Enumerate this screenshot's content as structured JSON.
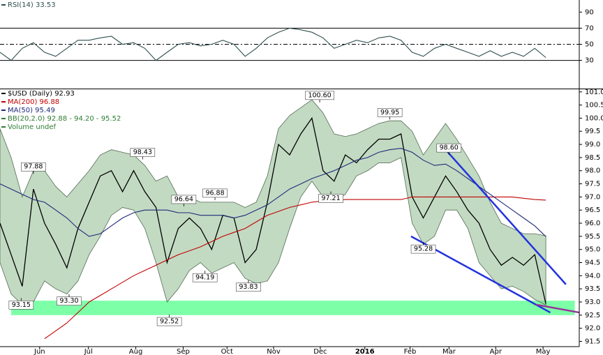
{
  "chart_data": [
    {
      "type": "line",
      "x": [
        0,
        1,
        2,
        3,
        4,
        5,
        6,
        7,
        8,
        9,
        10,
        11,
        12,
        13,
        14,
        15,
        16,
        17,
        18,
        19,
        20,
        21,
        22,
        23,
        24,
        25,
        26,
        27,
        28,
        29,
        30,
        31,
        32,
        33,
        34,
        35,
        36,
        37,
        38,
        39,
        40,
        41,
        42,
        43,
        44,
        45,
        46,
        47,
        48,
        49
      ],
      "series": [
        {
          "name": "RSI(14) 33.53",
          "color": "#2f4f4f",
          "values": [
            40,
            30,
            45,
            52,
            40,
            35,
            45,
            55,
            55,
            58,
            60,
            50,
            52,
            45,
            30,
            40,
            50,
            52,
            48,
            50,
            55,
            50,
            35,
            45,
            58,
            65,
            70,
            68,
            65,
            58,
            45,
            50,
            55,
            52,
            58,
            60,
            55,
            40,
            35,
            45,
            50,
            45,
            40,
            35,
            42,
            35,
            40,
            35,
            45,
            33.53
          ]
        }
      ],
      "xlim": [
        0,
        52
      ],
      "ylim": [
        -5,
        105
      ],
      "yticks": [
        90,
        70,
        50,
        30
      ],
      "levels": [
        70,
        50,
        30
      ],
      "level_styles": [
        "solid",
        "dashed",
        "solid"
      ]
    },
    {
      "type": "line",
      "x": [
        0,
        1,
        2,
        3,
        4,
        5,
        6,
        7,
        8,
        9,
        10,
        11,
        12,
        13,
        14,
        15,
        16,
        17,
        18,
        19,
        20,
        21,
        22,
        23,
        24,
        25,
        26,
        27,
        28,
        29,
        30,
        31,
        32,
        33,
        34,
        35,
        36,
        37,
        38,
        39,
        40,
        41,
        42,
        43,
        44,
        45,
        46,
        47,
        48,
        49
      ],
      "series": [
        {
          "name": "$USD (Daily) 92.93",
          "color": "#000000",
          "values": [
            96.0,
            94.8,
            93.6,
            97.3,
            96.0,
            95.2,
            94.3,
            95.8,
            96.8,
            97.8,
            98.0,
            97.2,
            98.0,
            97.2,
            96.6,
            94.5,
            95.8,
            96.2,
            95.8,
            95.0,
            96.3,
            96.2,
            94.5,
            95.0,
            96.8,
            99.0,
            98.6,
            99.4,
            100.0,
            98.0,
            97.6,
            98.6,
            98.3,
            98.8,
            99.2,
            99.2,
            99.4,
            97.0,
            96.2,
            97.0,
            97.8,
            97.2,
            96.5,
            96.0,
            95.0,
            94.4,
            94.7,
            94.4,
            94.8,
            92.93
          ]
        },
        {
          "name": "MA(200) 96.88",
          "color": "#c00000",
          "values": [
            null,
            null,
            null,
            null,
            91.6,
            91.9,
            92.2,
            92.6,
            93.0,
            93.25,
            93.5,
            93.75,
            94.0,
            94.2,
            94.4,
            94.6,
            94.8,
            94.95,
            95.1,
            95.3,
            95.5,
            95.65,
            95.8,
            96.05,
            96.3,
            96.45,
            96.6,
            96.7,
            96.8,
            96.85,
            96.85,
            96.9,
            96.9,
            96.9,
            96.9,
            96.9,
            96.9,
            97.0,
            97.0,
            97.0,
            97.0,
            97.0,
            97.0,
            97.0,
            97.0,
            97.0,
            97.0,
            96.95,
            96.9,
            96.88
          ]
        },
        {
          "name": "MA(50) 95.49",
          "color": "#1f2a7a",
          "values": [
            97.5,
            97.3,
            97.1,
            96.9,
            96.8,
            96.5,
            96.2,
            95.8,
            95.5,
            95.6,
            95.9,
            96.2,
            96.4,
            96.5,
            96.5,
            96.5,
            96.4,
            96.4,
            96.3,
            96.3,
            96.3,
            96.2,
            96.3,
            96.5,
            96.7,
            97.0,
            97.3,
            97.5,
            97.7,
            97.85,
            98.0,
            98.2,
            98.4,
            98.5,
            98.7,
            98.8,
            98.85,
            98.7,
            98.4,
            98.2,
            98.25,
            98.0,
            97.7,
            97.4,
            97.1,
            96.8,
            96.5,
            96.2,
            95.9,
            95.49
          ]
        }
      ],
      "band": {
        "name": "BB(20,2.0) 92.88 - 94.20 - 95.52",
        "color": "#2e7d32",
        "upper": [
          99.6,
          98.5,
          97.0,
          98.0,
          98.0,
          97.4,
          97.0,
          97.5,
          98.0,
          98.6,
          98.8,
          98.7,
          98.6,
          98.2,
          97.6,
          97.8,
          97.0,
          97.0,
          96.8,
          96.8,
          96.8,
          96.8,
          96.6,
          96.8,
          97.8,
          99.6,
          100.1,
          100.4,
          100.7,
          100.2,
          99.4,
          99.3,
          99.4,
          99.6,
          99.8,
          99.9,
          99.9,
          99.5,
          98.6,
          99.2,
          99.8,
          99.2,
          98.5,
          97.8,
          96.8,
          96.0,
          95.8,
          95.6,
          95.6,
          95.52
        ],
        "lower": [
          94.5,
          93.3,
          92.9,
          93.0,
          93.8,
          93.5,
          93.3,
          93.8,
          94.8,
          95.5,
          96.3,
          96.6,
          96.5,
          95.8,
          94.5,
          93.0,
          93.5,
          94.2,
          94.5,
          94.1,
          94.3,
          94.5,
          93.9,
          93.7,
          93.8,
          94.5,
          95.8,
          97.0,
          97.6,
          97.0,
          96.8,
          97.1,
          97.8,
          98.0,
          98.3,
          98.3,
          98.5,
          96.0,
          95.2,
          95.5,
          96.5,
          96.5,
          95.8,
          94.5,
          94.0,
          93.5,
          93.6,
          93.4,
          93.1,
          92.88
        ]
      },
      "volume_label": "Volume undef",
      "xlim": [
        0,
        52
      ],
      "ylim": [
        91.3,
        101.1
      ],
      "xticks": [
        {
          "value": 3.56,
          "label": "Jun"
        },
        {
          "value": 7.94,
          "label": "Jul"
        },
        {
          "value": 12.19,
          "label": "Aug"
        },
        {
          "value": 16.44,
          "label": "Sep"
        },
        {
          "value": 20.38,
          "label": "Oct"
        },
        {
          "value": 24.56,
          "label": "Nov"
        },
        {
          "value": 28.75,
          "label": "Dec"
        },
        {
          "value": 32.75,
          "label": "2016"
        },
        {
          "value": 36.81,
          "label": "Feb"
        },
        {
          "value": 40.31,
          "label": "Mar"
        },
        {
          "value": 44.5,
          "label": "Apr"
        },
        {
          "value": 48.75,
          "label": "May"
        }
      ],
      "yticks": [
        {
          "value": 101.0,
          "label": "101.0"
        },
        {
          "value": 100.5,
          "label": "100.5"
        },
        {
          "value": 100.0,
          "label": "100.0"
        },
        {
          "value": 99.5,
          "label": "99.5"
        },
        {
          "value": 99.0,
          "label": "99.0"
        },
        {
          "value": 98.5,
          "label": "98.5"
        },
        {
          "value": 98.0,
          "label": "98.0"
        },
        {
          "value": 97.5,
          "label": "97.5"
        },
        {
          "value": 97.0,
          "label": "97.0"
        },
        {
          "value": 96.5,
          "label": "96.5"
        },
        {
          "value": 96.0,
          "label": "96.0"
        },
        {
          "value": 95.5,
          "label": "95.5"
        },
        {
          "value": 95.0,
          "label": "95.0"
        },
        {
          "value": 94.5,
          "label": "94.5"
        },
        {
          "value": 94.0,
          "label": "94.0"
        },
        {
          "value": 93.5,
          "label": "93.5"
        },
        {
          "value": 93.0,
          "label": "93.0"
        },
        {
          "value": 92.5,
          "label": "92.5"
        },
        {
          "value": 92.0,
          "label": "92.0"
        },
        {
          "value": 91.5,
          "label": "91.5"
        }
      ],
      "annotations": [
        {
          "text": "97.88",
          "x": 3.0,
          "y": 97.88,
          "position": "above"
        },
        {
          "text": "93.15",
          "x": 1.9,
          "y": 93.15,
          "position": "below"
        },
        {
          "text": "93.30",
          "x": 6.2,
          "y": 93.3,
          "position": "below"
        },
        {
          "text": "98.43",
          "x": 12.8,
          "y": 98.43,
          "position": "above"
        },
        {
          "text": "92.52",
          "x": 15.2,
          "y": 92.52,
          "position": "below"
        },
        {
          "text": "96.64",
          "x": 16.5,
          "y": 96.64,
          "position": "above"
        },
        {
          "text": "94.19",
          "x": 18.4,
          "y": 94.19,
          "position": "below"
        },
        {
          "text": "96.88",
          "x": 19.3,
          "y": 96.88,
          "position": "above"
        },
        {
          "text": "93.83",
          "x": 22.3,
          "y": 93.83,
          "position": "below"
        },
        {
          "text": "100.60",
          "x": 28.7,
          "y": 100.6,
          "position": "above"
        },
        {
          "text": "97.21",
          "x": 29.7,
          "y": 97.21,
          "position": "below"
        },
        {
          "text": "99.95",
          "x": 35.0,
          "y": 99.95,
          "position": "above"
        },
        {
          "text": "95.28",
          "x": 38.0,
          "y": 95.28,
          "position": "below"
        },
        {
          "text": "98.60",
          "x": 40.3,
          "y": 98.6,
          "position": "above"
        }
      ],
      "trendlines": [
        {
          "color": "#2233dd",
          "from": [
            40.0,
            98.8
          ],
          "to": [
            50.8,
            93.67
          ]
        },
        {
          "color": "#2233dd",
          "from": [
            36.9,
            95.5
          ],
          "to": [
            49.4,
            92.6
          ]
        },
        {
          "color": "#993399",
          "from": [
            48.1,
            92.9
          ],
          "to": [
            52.0,
            92.6
          ]
        }
      ],
      "zone": {
        "from": 92.5,
        "to": 93.05,
        "x": [
          1.0,
          51.6
        ],
        "color": "#66ff99"
      }
    }
  ]
}
